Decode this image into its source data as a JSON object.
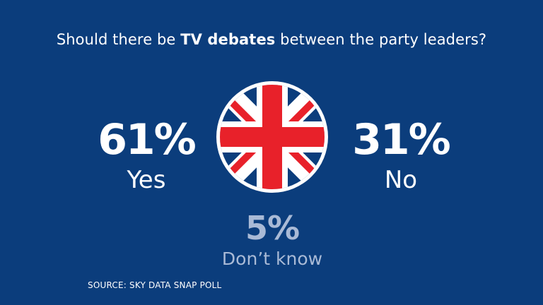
{
  "title": {
    "before": "Should there be ",
    "bold": "TV debates",
    "after": " between the party leaders?"
  },
  "chart_data": {
    "type": "table",
    "title": "Should there be TV debates between the party leaders?",
    "categories": [
      "Yes",
      "No",
      "Don’t know"
    ],
    "values": [
      61,
      31,
      5
    ],
    "display": [
      "61%",
      "31%",
      "5%"
    ],
    "unit": "%"
  },
  "source": "SOURCE: SKY DATA SNAP POLL",
  "colors": {
    "background": "#0b3d7c",
    "text": "#ffffff",
    "muted": "#a9bad6",
    "flag_blue": "#0b3d7c",
    "flag_red": "#e8212a",
    "flag_white": "#ffffff"
  },
  "icons": {
    "center": "union-jack-icon"
  }
}
